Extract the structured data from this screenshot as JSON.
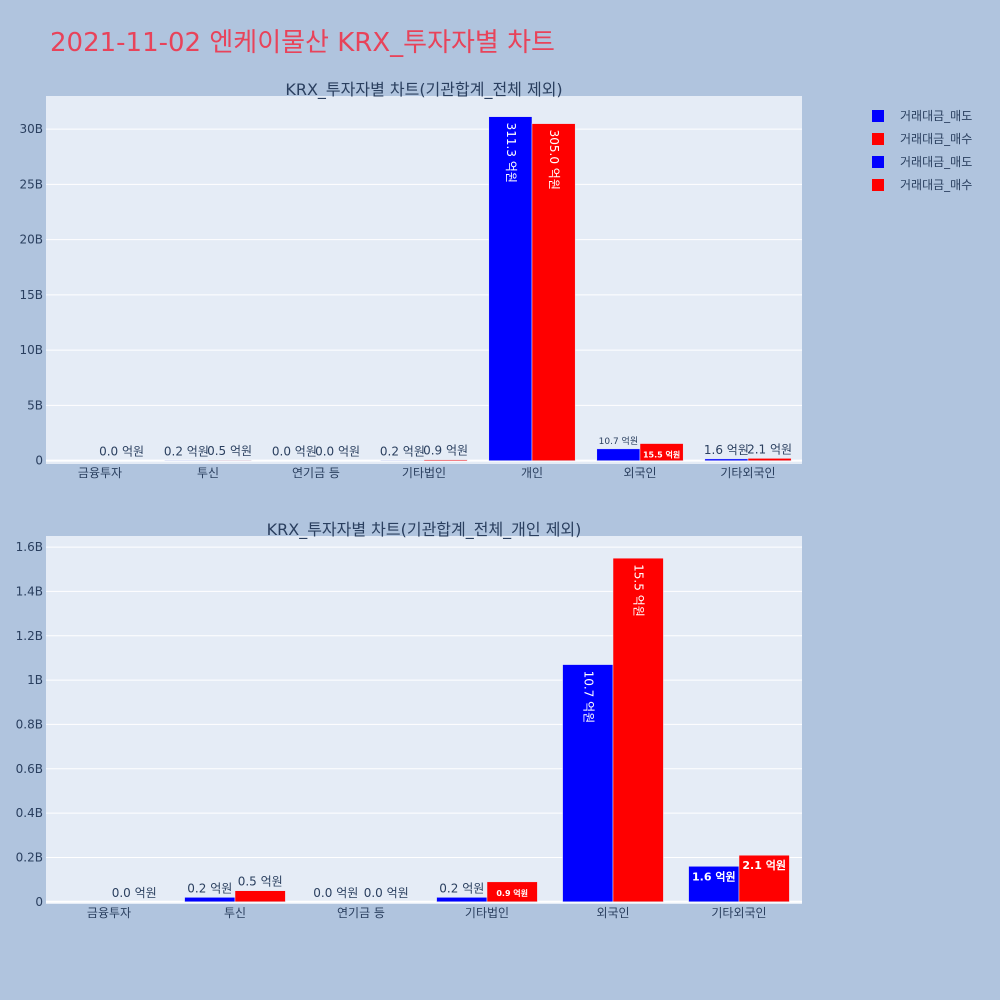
{
  "page_title": "2021-11-02 엔케이물산 KRX_투자자별 차트",
  "colors": {
    "sell": "#0000ff",
    "buy": "#ff0000",
    "plot_bg": "#e5ecf6",
    "paper_bg": "#b0c4de",
    "title": "#e8435a"
  },
  "legend": [
    {
      "label": "거래대금_매도",
      "color": "#0000ff"
    },
    {
      "label": "거래대금_매수",
      "color": "#ff0000"
    },
    {
      "label": "거래대금_매도",
      "color": "#0000ff"
    },
    {
      "label": "거래대금_매수",
      "color": "#ff0000"
    }
  ],
  "chart_data": [
    {
      "type": "bar",
      "title": "KRX_투자자별 차트(기관합계_전체 제외)",
      "categories": [
        "금융투자",
        "투신",
        "연기금 등",
        "기타법인",
        "개인",
        "외국인",
        "기타외국인"
      ],
      "series": [
        {
          "name": "거래대금_매도",
          "values": [
            0,
            20000000,
            0,
            20000000,
            31130000000,
            1070000000,
            160000000
          ],
          "labels": [
            "",
            "0.2 억원",
            "0.0 억원",
            "0.2 억원",
            "311.3 억원",
            "10.7 억원",
            "1.6 억원"
          ]
        },
        {
          "name": "거래대금_매수",
          "values": [
            0,
            50000000,
            0,
            90000000,
            30500000000,
            1550000000,
            210000000
          ],
          "labels": [
            "0.0 억원",
            "0.5 억원",
            "0.0 억원",
            "0.9 억원",
            "305.0 억원",
            "15.5 억원",
            "2.1 억원"
          ]
        }
      ],
      "yticks": [
        "0",
        "5B",
        "10B",
        "15B",
        "20B",
        "25B",
        "30B"
      ],
      "ytick_values": [
        0,
        5000000000,
        10000000000,
        15000000000,
        20000000000,
        25000000000,
        30000000000
      ],
      "ylim": [
        -300000000,
        33000000000
      ]
    },
    {
      "type": "bar",
      "title": "KRX_투자자별 차트(기관합계_전체_개인 제외)",
      "categories": [
        "금융투자",
        "투신",
        "연기금 등",
        "기타법인",
        "외국인",
        "기타외국인"
      ],
      "series": [
        {
          "name": "거래대금_매도",
          "values": [
            0,
            20000000,
            0,
            20000000,
            1070000000,
            160000000
          ],
          "labels": [
            "",
            "0.2 억원",
            "0.0 억원",
            "0.2 억원",
            "10.7 억원",
            "1.6 억원"
          ]
        },
        {
          "name": "거래대금_매수",
          "values": [
            0,
            50000000,
            0,
            90000000,
            1550000000,
            210000000
          ],
          "labels": [
            "0.0 억원",
            "0.5 억원",
            "0.0 억원",
            "0.9 억원",
            "15.5 억원",
            "2.1 억원"
          ]
        }
      ],
      "yticks": [
        "0",
        "0.2B",
        "0.4B",
        "0.6B",
        "0.8B",
        "1B",
        "1.2B",
        "1.4B",
        "1.6B"
      ],
      "ytick_values": [
        0,
        200000000,
        400000000,
        600000000,
        800000000,
        1000000000,
        1200000000,
        1400000000,
        1600000000
      ],
      "ylim": [
        -10000000,
        1650000000
      ]
    }
  ]
}
